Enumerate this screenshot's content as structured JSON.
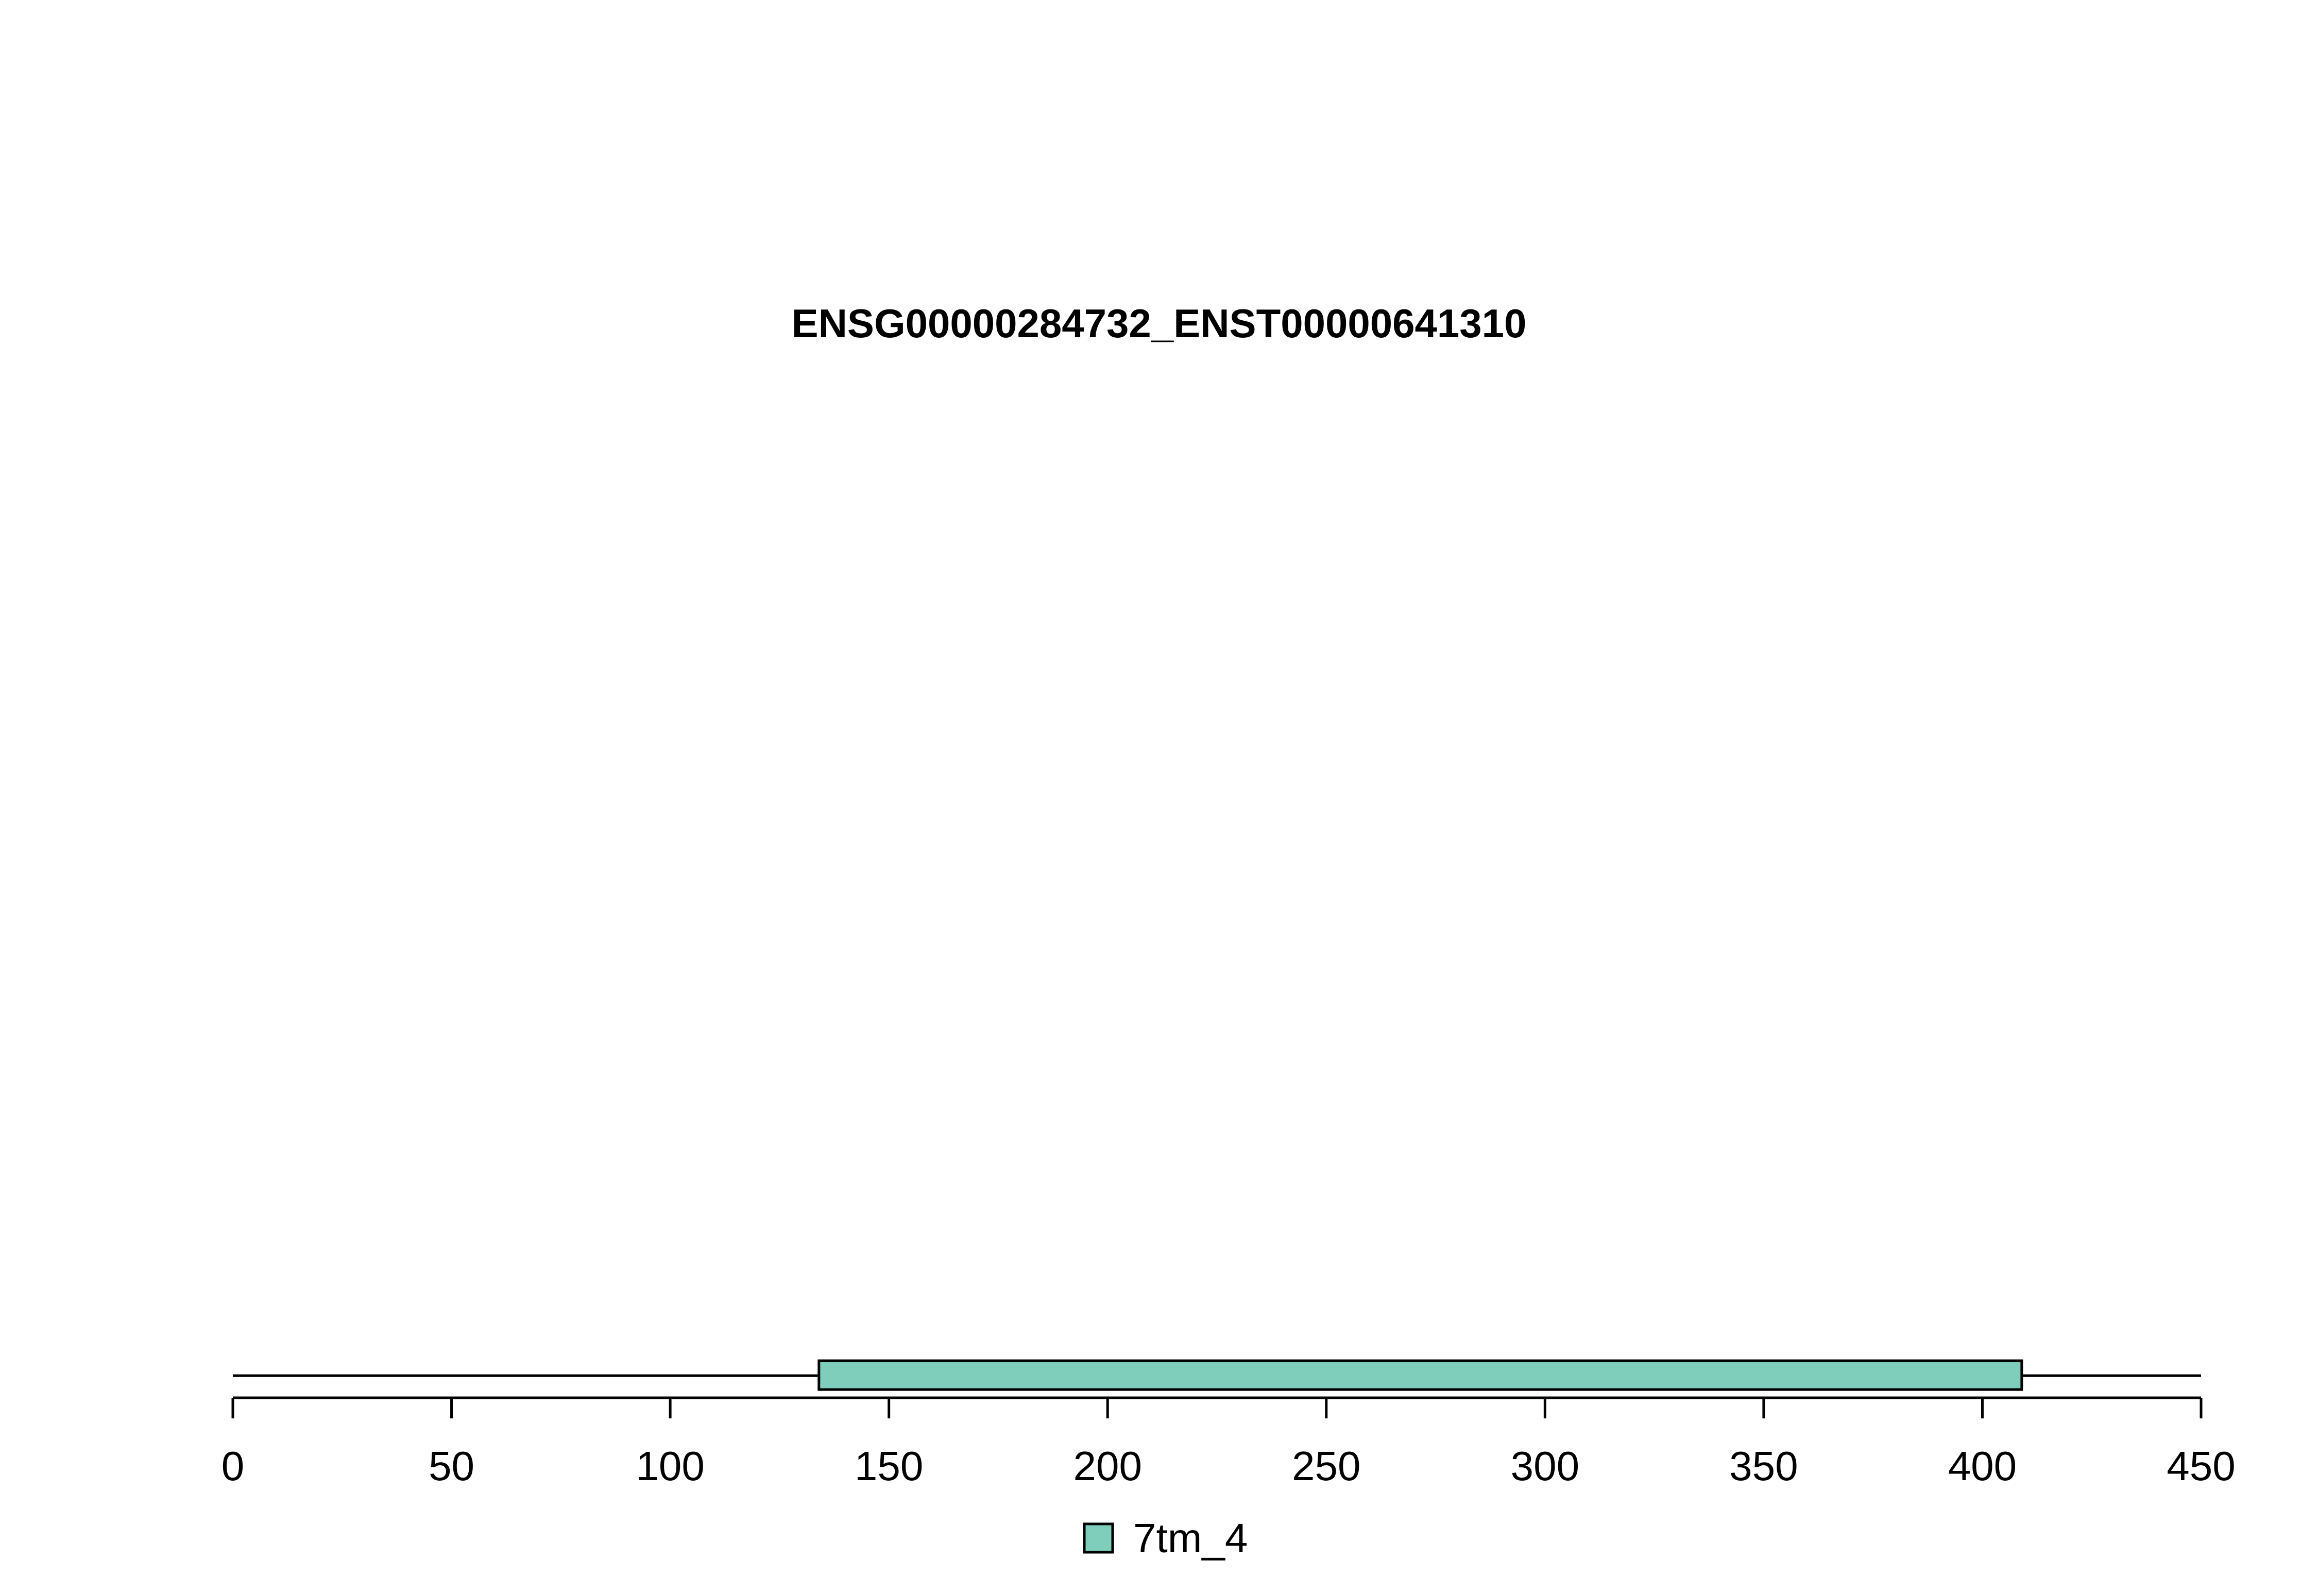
{
  "chart_data": {
    "type": "domain-track",
    "title": "ENSG00000284732_ENST00000641310",
    "protein_length": 450,
    "xlim": [
      0,
      450
    ],
    "xticks": [
      0,
      50,
      100,
      150,
      200,
      250,
      300,
      350,
      400,
      450
    ],
    "domains": [
      {
        "name": "7tm_4",
        "start": 134,
        "end": 409,
        "color": "#7fcdbb"
      }
    ],
    "legend": [
      {
        "label": "7tm_4",
        "color": "#7fcdbb"
      }
    ]
  }
}
